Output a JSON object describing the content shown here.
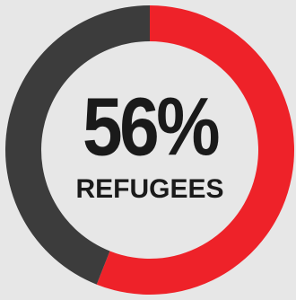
{
  "chart_data": {
    "type": "donut",
    "categories": [
      "REFUGEES",
      null
    ],
    "values": [
      56,
      44
    ],
    "value_labels": [
      "56%",
      null
    ],
    "colors": [
      "#ee2229",
      "#3c3c3c"
    ]
  }
}
